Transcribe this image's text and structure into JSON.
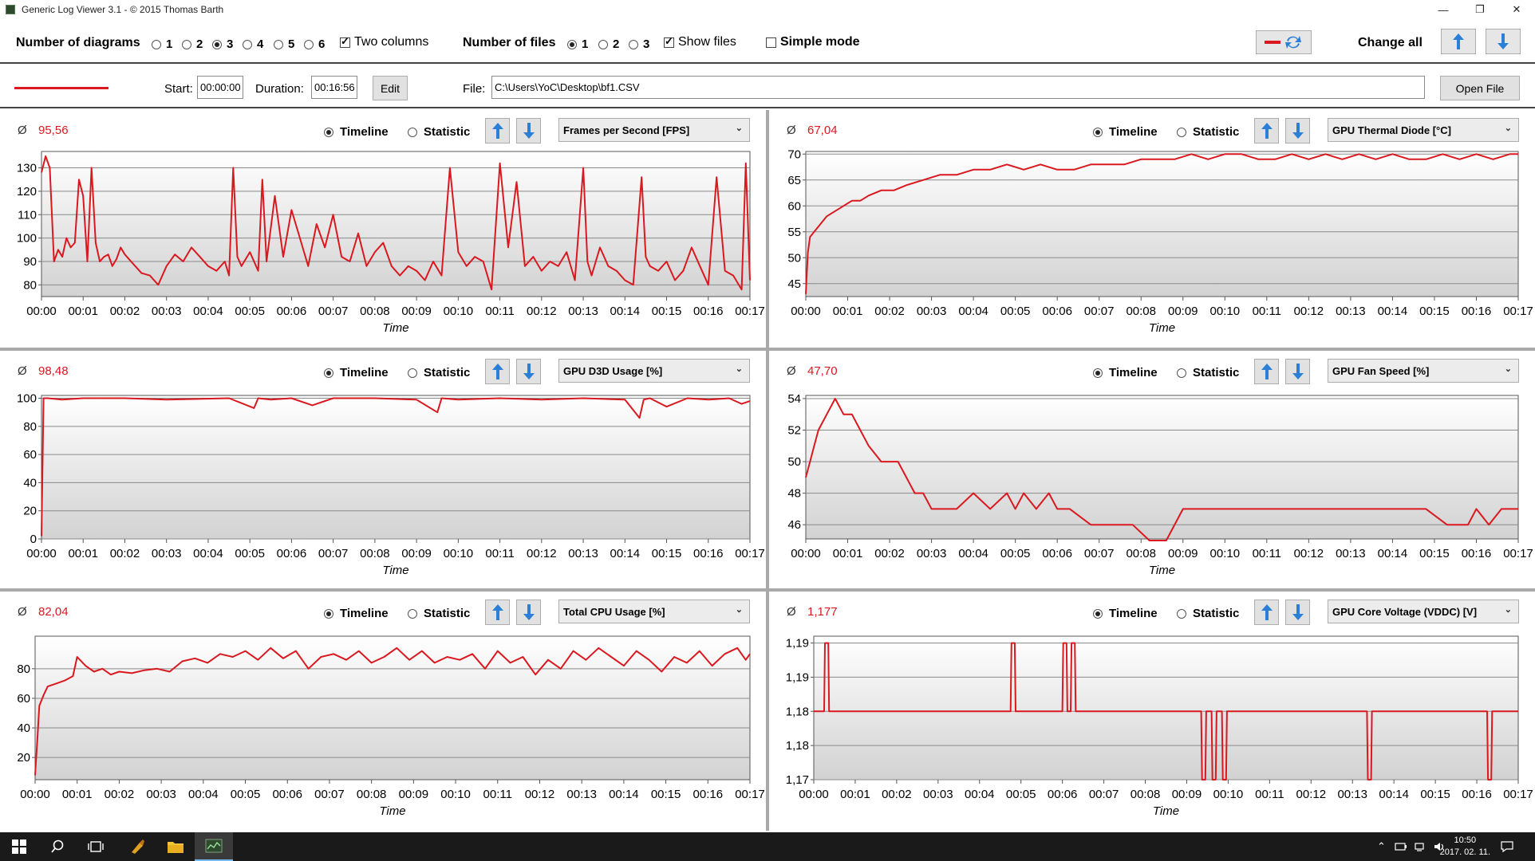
{
  "window": {
    "title": "Generic Log Viewer 3.1 - © 2015 Thomas Barth",
    "minimize": "—",
    "restore": "❐",
    "close": "✕"
  },
  "toolbar": {
    "num_diagrams_label": "Number of diagrams",
    "diagram_options": [
      "1",
      "2",
      "3",
      "4",
      "5",
      "6"
    ],
    "diagram_selected": "3",
    "two_columns_label": "Two columns",
    "two_columns_checked": true,
    "num_files_label": "Number of files",
    "file_options": [
      "1",
      "2",
      "3"
    ],
    "file_selected": "1",
    "show_files_label": "Show files",
    "show_files_checked": true,
    "simple_mode_label": "Simple mode",
    "simple_mode_checked": false,
    "change_all_label": "Change all"
  },
  "filebar": {
    "line_color": "#d9191f",
    "start_label": "Start:",
    "start_value": "00:00:00",
    "duration_label": "Duration:",
    "duration_value": "00:16:56",
    "edit_label": "Edit",
    "file_label": "File:",
    "file_path": "C:\\Users\\YoC\\Desktop\\bf1.CSV",
    "open_label": "Open File"
  },
  "common": {
    "avg_symbol": "Ø",
    "timeline_label": "Timeline",
    "statistic_label": "Statistic",
    "x_axis_label": "Time",
    "x_ticks": [
      "00:00",
      "00:01",
      "00:02",
      "00:03",
      "00:04",
      "00:05",
      "00:06",
      "00:07",
      "00:08",
      "00:09",
      "00:10",
      "00:11",
      "00:12",
      "00:13",
      "00:14",
      "00:15",
      "00:16",
      "00:17"
    ]
  },
  "panels": [
    {
      "average": "95,56",
      "sensor": "Frames per Second [FPS]"
    },
    {
      "average": "67,04",
      "sensor": "GPU Thermal Diode [°C]"
    },
    {
      "average": "98,48",
      "sensor": "GPU D3D Usage [%]"
    },
    {
      "average": "47,70",
      "sensor": "GPU Fan Speed [%]"
    },
    {
      "average": "82,04",
      "sensor": "Total CPU Usage [%]"
    },
    {
      "average": "1,177",
      "sensor": "GPU Core Voltage (VDDC) [V]"
    }
  ],
  "chart_data": [
    {
      "type": "line",
      "title": "Frames per Second [FPS]",
      "xlabel": "Time",
      "x_unit": "minutes",
      "xlim": [
        0,
        17
      ],
      "ylim": [
        75,
        137
      ],
      "y_ticks": [
        {
          "v": 80,
          "label": "80"
        },
        {
          "v": 90,
          "label": "90"
        },
        {
          "v": 100,
          "label": "100"
        },
        {
          "v": 110,
          "label": "110"
        },
        {
          "v": 120,
          "label": "120"
        },
        {
          "v": 130,
          "label": "130"
        }
      ],
      "x": [
        0,
        0.1,
        0.2,
        0.3,
        0.4,
        0.5,
        0.6,
        0.7,
        0.8,
        0.9,
        1.0,
        1.1,
        1.2,
        1.3,
        1.4,
        1.5,
        1.6,
        1.7,
        1.8,
        1.9,
        2.0,
        2.2,
        2.4,
        2.6,
        2.8,
        3.0,
        3.2,
        3.4,
        3.6,
        3.8,
        4.0,
        4.2,
        4.4,
        4.5,
        4.6,
        4.7,
        4.8,
        5.0,
        5.2,
        5.3,
        5.4,
        5.6,
        5.8,
        6.0,
        6.2,
        6.4,
        6.6,
        6.8,
        7.0,
        7.2,
        7.4,
        7.6,
        7.8,
        8.0,
        8.2,
        8.4,
        8.6,
        8.8,
        9.0,
        9.2,
        9.4,
        9.6,
        9.8,
        10.0,
        10.2,
        10.4,
        10.6,
        10.8,
        11.0,
        11.2,
        11.4,
        11.6,
        11.8,
        12.0,
        12.2,
        12.4,
        12.6,
        12.8,
        13.0,
        13.1,
        13.2,
        13.4,
        13.6,
        13.8,
        14.0,
        14.2,
        14.4,
        14.5,
        14.6,
        14.8,
        15.0,
        15.2,
        15.4,
        15.6,
        15.8,
        16.0,
        16.2,
        16.4,
        16.6,
        16.8,
        16.9,
        17.0
      ],
      "series": [
        {
          "values": [
            128,
            135,
            130,
            90,
            95,
            92,
            100,
            96,
            98,
            125,
            118,
            90,
            130,
            98,
            90,
            92,
            93,
            88,
            91,
            96,
            93,
            89,
            85,
            84,
            80,
            88,
            93,
            90,
            96,
            92,
            88,
            86,
            90,
            84,
            130,
            92,
            88,
            94,
            86,
            125,
            90,
            118,
            92,
            112,
            100,
            88,
            106,
            96,
            110,
            92,
            90,
            102,
            88,
            94,
            98,
            88,
            84,
            88,
            86,
            82,
            90,
            84,
            130,
            94,
            88,
            92,
            90,
            78,
            132,
            96,
            124,
            88,
            92,
            86,
            90,
            88,
            94,
            82,
            130,
            90,
            84,
            96,
            88,
            86,
            82,
            80,
            126,
            92,
            88,
            86,
            90,
            82,
            86,
            96,
            88,
            80,
            126,
            86,
            84,
            78,
            132,
            82
          ]
        }
      ]
    },
    {
      "type": "line",
      "title": "GPU Thermal Diode [°C]",
      "xlabel": "Time",
      "x_unit": "minutes",
      "xlim": [
        0,
        17
      ],
      "ylim": [
        42.5,
        70.5
      ],
      "y_ticks": [
        {
          "v": 45,
          "label": "45"
        },
        {
          "v": 50,
          "label": "50"
        },
        {
          "v": 55,
          "label": "55"
        },
        {
          "v": 60,
          "label": "60"
        },
        {
          "v": 65,
          "label": "65"
        },
        {
          "v": 70,
          "label": "70"
        }
      ],
      "x": [
        0,
        0.05,
        0.1,
        0.2,
        0.3,
        0.4,
        0.5,
        0.7,
        0.9,
        1.1,
        1.3,
        1.5,
        1.8,
        2.1,
        2.4,
        2.8,
        3.2,
        3.6,
        4.0,
        4.4,
        4.8,
        5.2,
        5.6,
        6.0,
        6.4,
        6.8,
        7.2,
        7.6,
        8.0,
        8.4,
        8.8,
        9.2,
        9.6,
        10.0,
        10.4,
        10.8,
        11.2,
        11.6,
        12.0,
        12.4,
        12.8,
        13.2,
        13.6,
        14.0,
        14.4,
        14.8,
        15.2,
        15.6,
        16.0,
        16.4,
        16.8,
        17.0
      ],
      "series": [
        {
          "values": [
            43,
            51,
            54,
            55,
            56,
            57,
            58,
            59,
            60,
            61,
            61,
            62,
            63,
            63,
            64,
            65,
            66,
            66,
            67,
            67,
            68,
            67,
            68,
            67,
            67,
            68,
            68,
            68,
            69,
            69,
            69,
            70,
            69,
            70,
            70,
            69,
            69,
            70,
            69,
            70,
            69,
            70,
            69,
            70,
            69,
            69,
            70,
            69,
            70,
            69,
            70,
            70
          ]
        }
      ]
    },
    {
      "type": "line",
      "title": "GPU D3D Usage [%]",
      "xlabel": "Time",
      "x_unit": "minutes",
      "xlim": [
        0,
        17
      ],
      "ylim": [
        0,
        102
      ],
      "y_ticks": [
        {
          "v": 0,
          "label": "0"
        },
        {
          "v": 20,
          "label": "20"
        },
        {
          "v": 40,
          "label": "40"
        },
        {
          "v": 60,
          "label": "60"
        },
        {
          "v": 80,
          "label": "80"
        },
        {
          "v": 100,
          "label": "100"
        }
      ],
      "x": [
        0,
        0.05,
        0.15,
        0.5,
        1.0,
        2.0,
        3.0,
        4.5,
        5.1,
        5.2,
        5.5,
        6.0,
        6.5,
        7.0,
        8.0,
        9.0,
        9.5,
        9.6,
        10.0,
        11.0,
        12.0,
        13.0,
        14.0,
        14.35,
        14.45,
        14.6,
        15.0,
        15.5,
        16.0,
        16.5,
        16.8,
        17.0
      ],
      "series": [
        {
          "values": [
            2,
            100,
            100,
            99,
            100,
            100,
            99,
            100,
            93,
            100,
            99,
            100,
            95,
            100,
            100,
            99,
            90,
            100,
            99,
            100,
            99,
            100,
            99,
            86,
            99,
            100,
            94,
            100,
            99,
            100,
            96,
            98
          ]
        }
      ]
    },
    {
      "type": "line",
      "title": "GPU Fan Speed [%]",
      "xlabel": "Time",
      "x_unit": "minutes",
      "xlim": [
        0,
        17
      ],
      "ylim": [
        45.1,
        54.2
      ],
      "y_ticks": [
        {
          "v": 46,
          "label": "46"
        },
        {
          "v": 48,
          "label": "48"
        },
        {
          "v": 50,
          "label": "50"
        },
        {
          "v": 52,
          "label": "52"
        },
        {
          "v": 54,
          "label": "54"
        }
      ],
      "x": [
        0,
        0.1,
        0.2,
        0.3,
        0.5,
        0.7,
        0.9,
        1.1,
        1.3,
        1.5,
        1.8,
        2.0,
        2.2,
        2.4,
        2.6,
        2.8,
        3.0,
        3.2,
        3.6,
        4.0,
        4.4,
        4.8,
        5.0,
        5.2,
        5.5,
        5.8,
        6.0,
        6.3,
        6.8,
        7.3,
        7.8,
        8.2,
        8.6,
        9.0,
        9.2,
        9.5,
        10.0,
        11.0,
        12.0,
        13.0,
        14.0,
        14.8,
        15.3,
        15.8,
        16.0,
        16.3,
        16.6,
        17.0
      ],
      "series": [
        {
          "values": [
            49,
            50,
            51,
            52,
            53,
            54,
            53,
            53,
            52,
            51,
            50,
            50,
            50,
            49,
            48,
            48,
            47,
            47,
            47,
            48,
            47,
            48,
            47,
            48,
            47,
            48,
            47,
            47,
            46,
            46,
            46,
            45,
            45,
            47,
            47,
            47,
            47,
            47,
            47,
            47,
            47,
            47,
            46,
            46,
            47,
            46,
            47,
            47
          ]
        }
      ]
    },
    {
      "type": "line",
      "title": "Total CPU Usage [%]",
      "xlabel": "Time",
      "x_unit": "minutes",
      "xlim": [
        0,
        17
      ],
      "ylim": [
        5,
        102
      ],
      "y_ticks": [
        {
          "v": 20,
          "label": "20"
        },
        {
          "v": 40,
          "label": "40"
        },
        {
          "v": 60,
          "label": "60"
        },
        {
          "v": 80,
          "label": "80"
        }
      ],
      "x": [
        0,
        0.05,
        0.1,
        0.2,
        0.3,
        0.5,
        0.7,
        0.9,
        1.0,
        1.2,
        1.4,
        1.6,
        1.8,
        2.0,
        2.3,
        2.6,
        2.9,
        3.2,
        3.5,
        3.8,
        4.1,
        4.4,
        4.7,
        5.0,
        5.3,
        5.6,
        5.9,
        6.2,
        6.5,
        6.8,
        7.1,
        7.4,
        7.7,
        8.0,
        8.3,
        8.6,
        8.9,
        9.2,
        9.5,
        9.8,
        10.1,
        10.4,
        10.7,
        11.0,
        11.3,
        11.6,
        11.9,
        12.2,
        12.5,
        12.8,
        13.1,
        13.4,
        13.7,
        14.0,
        14.3,
        14.6,
        14.9,
        15.2,
        15.5,
        15.8,
        16.1,
        16.4,
        16.7,
        16.9,
        17.0
      ],
      "series": [
        {
          "values": [
            8,
            30,
            55,
            62,
            68,
            70,
            72,
            75,
            88,
            82,
            78,
            80,
            76,
            78,
            77,
            79,
            80,
            78,
            85,
            87,
            84,
            90,
            88,
            92,
            86,
            94,
            87,
            92,
            80,
            88,
            90,
            86,
            92,
            84,
            88,
            94,
            86,
            92,
            84,
            88,
            86,
            90,
            80,
            92,
            84,
            88,
            76,
            86,
            80,
            92,
            86,
            94,
            88,
            82,
            92,
            86,
            78,
            88,
            84,
            92,
            82,
            90,
            94,
            86,
            90
          ]
        }
      ]
    },
    {
      "type": "line",
      "title": "GPU Core Voltage (VDDC) [V]",
      "xlabel": "Time",
      "x_unit": "minutes",
      "xlim": [
        0,
        17
      ],
      "ylim": [
        1.171,
        1.192
      ],
      "y_ticks": [
        {
          "v": 1.171,
          "label": "1,17"
        },
        {
          "v": 1.176,
          "label": "1,18"
        },
        {
          "v": 1.181,
          "label": "1,18"
        },
        {
          "v": 1.186,
          "label": "1,19"
        },
        {
          "v": 1.191,
          "label": "1,19"
        }
      ],
      "x": [
        0,
        0.25,
        0.27,
        0.35,
        0.37,
        4.75,
        4.77,
        4.85,
        4.87,
        6.0,
        6.02,
        6.1,
        6.12,
        6.2,
        6.22,
        6.3,
        6.32,
        9.35,
        9.37,
        9.45,
        9.47,
        9.6,
        9.62,
        9.7,
        9.72,
        9.85,
        9.87,
        9.95,
        9.97,
        13.35,
        13.37,
        13.45,
        13.47,
        16.25,
        16.27,
        16.35,
        16.37,
        17.0
      ],
      "series": [
        {
          "values": [
            1.181,
            1.181,
            1.191,
            1.191,
            1.181,
            1.181,
            1.191,
            1.191,
            1.181,
            1.181,
            1.191,
            1.191,
            1.181,
            1.181,
            1.191,
            1.191,
            1.181,
            1.181,
            1.171,
            1.171,
            1.181,
            1.181,
            1.171,
            1.171,
            1.181,
            1.181,
            1.171,
            1.171,
            1.181,
            1.181,
            1.171,
            1.171,
            1.181,
            1.181,
            1.171,
            1.171,
            1.181,
            1.181
          ]
        }
      ]
    }
  ],
  "taskbar": {
    "clock_time": "10:50",
    "clock_date": "2017. 02. 11."
  }
}
